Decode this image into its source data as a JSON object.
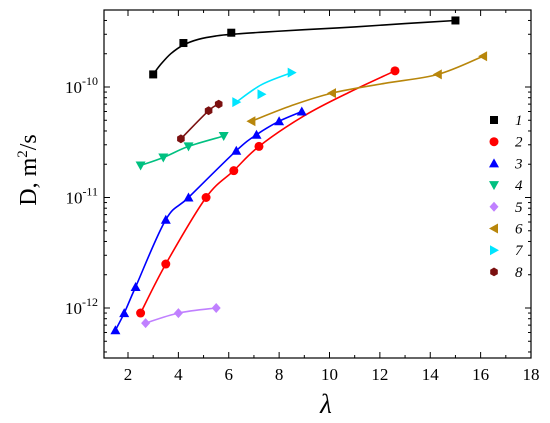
{
  "chart_data": {
    "type": "scatter",
    "xlabel": "λ",
    "ylabel_main": "D, m",
    "ylabel_sup": "2",
    "ylabel_tail": "/s",
    "xlim": [
      1,
      18
    ],
    "ylim": [
      5e-13,
      5e-10
    ],
    "yscale": "log",
    "x_ticks": [
      2,
      4,
      6,
      8,
      10,
      12,
      14,
      16,
      18
    ],
    "y_ticks": [
      {
        "value": 1e-12,
        "base": "10",
        "exp": "-12"
      },
      {
        "value": 1e-11,
        "base": "10",
        "exp": "-11"
      },
      {
        "value": 1e-10,
        "base": "10",
        "exp": "-10"
      }
    ],
    "legend_position": "right",
    "series": [
      {
        "name": "1",
        "color": "#000000",
        "marker": "square",
        "x": [
          3.0,
          4.2,
          6.1,
          15.0
        ],
        "y": [
          1.3e-10,
          2.5e-10,
          3.1e-10,
          4e-10
        ],
        "curve_x": [
          3.0,
          3.3,
          3.7,
          4.2,
          4.8,
          5.5,
          6.1,
          7.5,
          9.0,
          11.0,
          13.0,
          15.0
        ],
        "curve_y": [
          1.3e-10,
          1.6e-10,
          2e-10,
          2.4e-10,
          2.7e-10,
          2.9e-10,
          3e-10,
          3.15e-10,
          3.3e-10,
          3.5e-10,
          3.75e-10,
          4e-10
        ]
      },
      {
        "name": "2",
        "color": "#ff0000",
        "marker": "circle",
        "x": [
          2.5,
          3.5,
          5.1,
          6.2,
          7.2,
          12.6
        ],
        "y": [
          9e-13,
          2.5e-12,
          1e-11,
          1.75e-11,
          2.9e-11,
          1.4e-10
        ],
        "curve_x": [
          2.5,
          3.5,
          5.1,
          6.2,
          7.2,
          9.0,
          10.8,
          12.6
        ],
        "curve_y": [
          9e-13,
          2.5e-12,
          1e-11,
          1.75e-11,
          2.9e-11,
          5.5e-11,
          9e-11,
          1.4e-10
        ]
      },
      {
        "name": "3",
        "color": "#0000ff",
        "marker": "triangle-up",
        "x": [
          1.5,
          1.85,
          2.3,
          3.5,
          4.4,
          6.3,
          7.1,
          8.0,
          8.9
        ],
        "y": [
          6.3e-13,
          9e-13,
          1.55e-12,
          6.3e-12,
          1e-11,
          2.65e-11,
          3.7e-11,
          4.9e-11,
          6e-11
        ],
        "curve_x": [
          1.5,
          1.85,
          2.3,
          3.5,
          4.4,
          6.3,
          7.1,
          8.0,
          8.9
        ],
        "curve_y": [
          6.3e-13,
          9e-13,
          1.55e-12,
          6.3e-12,
          1e-11,
          2.65e-11,
          3.7e-11,
          4.9e-11,
          6e-11
        ]
      },
      {
        "name": "4",
        "color": "#00c080",
        "marker": "triangle-down",
        "x": [
          2.5,
          3.4,
          4.4,
          5.8
        ],
        "y": [
          1.95e-11,
          2.3e-11,
          2.9e-11,
          3.6e-11
        ],
        "curve_x": [
          2.5,
          3.4,
          4.4,
          5.8
        ],
        "curve_y": [
          1.95e-11,
          2.3e-11,
          2.9e-11,
          3.6e-11
        ]
      },
      {
        "name": "5",
        "color": "#c080ff",
        "marker": "diamond",
        "x": [
          2.7,
          4.0,
          5.5
        ],
        "y": [
          7.3e-13,
          9e-13,
          1e-12
        ],
        "curve_x": [
          2.7,
          4.0,
          5.5
        ],
        "curve_y": [
          7.3e-13,
          9e-13,
          1e-12
        ]
      },
      {
        "name": "6",
        "color": "#b8860b",
        "marker": "triangle-left",
        "x": [
          6.9,
          10.1,
          14.3,
          16.1
        ],
        "y": [
          4.9e-11,
          8.8e-11,
          1.3e-10,
          1.9e-10
        ],
        "curve_x": [
          6.9,
          8.5,
          10.1,
          12.2,
          14.3,
          16.1
        ],
        "curve_y": [
          4.9e-11,
          6.8e-11,
          8.8e-11,
          1.08e-10,
          1.3e-10,
          1.9e-10
        ]
      },
      {
        "name": "7",
        "color": "#00e5ff",
        "marker": "triangle-right",
        "x": [
          6.3,
          7.3,
          8.5
        ],
        "y": [
          7.3e-11,
          8.6e-11,
          1.35e-10
        ],
        "curve_x": [
          6.3,
          7.3,
          8.5
        ],
        "curve_y": [
          7.3e-11,
          1.05e-10,
          1.35e-10
        ]
      },
      {
        "name": "8",
        "color": "#7b1010",
        "marker": "hexagon",
        "x": [
          4.1,
          5.2,
          5.6
        ],
        "y": [
          3.4e-11,
          6.1e-11,
          7e-11
        ],
        "curve_x": [
          4.1,
          5.2,
          5.6
        ],
        "curve_y": [
          3.4e-11,
          6.1e-11,
          7e-11
        ]
      }
    ]
  }
}
